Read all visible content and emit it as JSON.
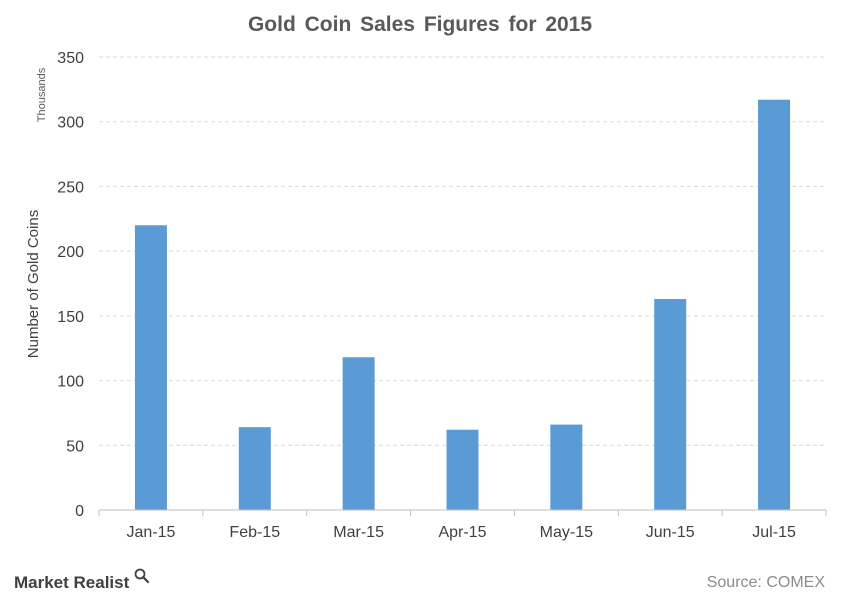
{
  "chart_data": {
    "type": "bar",
    "title": "Gold Coin Sales Figures for 2015",
    "xlabel": "",
    "ylabel": "Number of Gold Coins",
    "units_label": "Thousands",
    "categories": [
      "Jan-15",
      "Feb-15",
      "Mar-15",
      "Apr-15",
      "May-15",
      "Jun-15",
      "Jul-15"
    ],
    "series": [
      {
        "values": [
          220,
          64,
          118,
          62,
          66,
          163,
          317
        ]
      }
    ],
    "ylim": [
      0,
      350
    ],
    "yticks": [
      "0",
      "50",
      "100",
      "150",
      "200",
      "250",
      "300",
      "350"
    ],
    "grid": true,
    "bar_color": "#5b9bd5",
    "grid_color": "#d9d9d9",
    "axis_color": "#bfbfbf"
  },
  "source": "Source: COMEX",
  "brand": {
    "name": "Market Realist",
    "icon": "magnifier-icon"
  }
}
